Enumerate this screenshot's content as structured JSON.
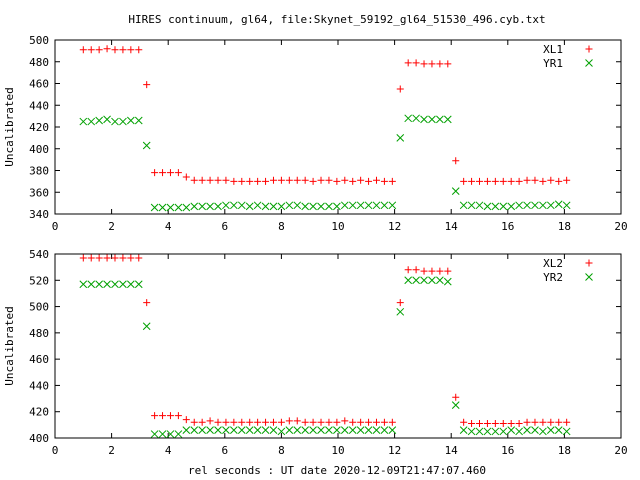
{
  "title": "HIRES continuum, gl64, file:Skynet_59192_gl64_51530_496.cyb.txt",
  "xlabel": "rel seconds : UT date 2020-12-09T21:47:07.460",
  "chart_data": [
    {
      "type": "scatter",
      "ylabel": "Uncalibrated",
      "xlim": [
        0,
        20
      ],
      "ylim": [
        340,
        500
      ],
      "xticks": [
        "0",
        "2",
        "4",
        "6",
        "8",
        "10",
        "12",
        "14",
        "16",
        "18",
        "20"
      ],
      "yticks": [
        "340",
        "360",
        "380",
        "400",
        "420",
        "440",
        "460",
        "480",
        "500"
      ],
      "legend_position": "top-right",
      "x": [
        1.0,
        1.28,
        1.56,
        1.84,
        2.12,
        2.4,
        2.68,
        2.96,
        3.24,
        3.52,
        3.8,
        4.08,
        4.36,
        4.64,
        4.92,
        5.2,
        5.48,
        5.76,
        6.04,
        6.32,
        6.6,
        6.88,
        7.16,
        7.44,
        7.72,
        8.0,
        8.28,
        8.56,
        8.84,
        9.12,
        9.4,
        9.68,
        9.96,
        10.24,
        10.52,
        10.8,
        11.08,
        11.36,
        11.64,
        11.92,
        12.2,
        12.48,
        12.76,
        13.04,
        13.32,
        13.6,
        13.88,
        14.16,
        14.44,
        14.72,
        15.0,
        15.28,
        15.56,
        15.84,
        16.12,
        16.4,
        16.68,
        16.96,
        17.24,
        17.52,
        17.8,
        18.08
      ],
      "series": [
        {
          "name": "XL1",
          "color": "#ff0000",
          "marker": "plus",
          "values": [
            491,
            491,
            491,
            492,
            491,
            491,
            491,
            491,
            459,
            378,
            378,
            378,
            378,
            374,
            371,
            371,
            371,
            371,
            371,
            370,
            370,
            370,
            370,
            370,
            371,
            371,
            371,
            371,
            371,
            370,
            371,
            371,
            370,
            371,
            370,
            371,
            370,
            371,
            370,
            370,
            455,
            479,
            479,
            478,
            478,
            478,
            478,
            389,
            370,
            370,
            370,
            370,
            370,
            370,
            370,
            370,
            371,
            371,
            370,
            371,
            370,
            371
          ]
        },
        {
          "name": "YR1",
          "color": "#00a000",
          "marker": "cross",
          "values": [
            425,
            425,
            426,
            427,
            425,
            425,
            426,
            426,
            403,
            346,
            346,
            346,
            346,
            346,
            347,
            347,
            347,
            347,
            348,
            348,
            348,
            347,
            348,
            347,
            347,
            347,
            348,
            348,
            347,
            347,
            347,
            347,
            347,
            348,
            348,
            348,
            348,
            348,
            348,
            348,
            410,
            428,
            428,
            427,
            427,
            427,
            427,
            361,
            348,
            348,
            348,
            347,
            347,
            347,
            347,
            348,
            348,
            348,
            348,
            348,
            349,
            348
          ]
        }
      ]
    },
    {
      "type": "scatter",
      "ylabel": "Uncalibrated",
      "xlim": [
        0,
        20
      ],
      "ylim": [
        400,
        540
      ],
      "xticks": [
        "0",
        "2",
        "4",
        "6",
        "8",
        "10",
        "12",
        "14",
        "16",
        "18",
        "20"
      ],
      "yticks": [
        "400",
        "420",
        "440",
        "460",
        "480",
        "500",
        "520",
        "540"
      ],
      "legend_position": "top-right",
      "x": [
        1.0,
        1.28,
        1.56,
        1.84,
        2.12,
        2.4,
        2.68,
        2.96,
        3.24,
        3.52,
        3.8,
        4.08,
        4.36,
        4.64,
        4.92,
        5.2,
        5.48,
        5.76,
        6.04,
        6.32,
        6.6,
        6.88,
        7.16,
        7.44,
        7.72,
        8.0,
        8.28,
        8.56,
        8.84,
        9.12,
        9.4,
        9.68,
        9.96,
        10.24,
        10.52,
        10.8,
        11.08,
        11.36,
        11.64,
        11.92,
        12.2,
        12.48,
        12.76,
        13.04,
        13.32,
        13.6,
        13.88,
        14.16,
        14.44,
        14.72,
        15.0,
        15.28,
        15.56,
        15.84,
        16.12,
        16.4,
        16.68,
        16.96,
        17.24,
        17.52,
        17.8,
        18.08
      ],
      "series": [
        {
          "name": "XL2",
          "color": "#ff0000",
          "marker": "plus",
          "values": [
            537,
            537,
            537,
            537,
            537,
            537,
            537,
            537,
            503,
            417,
            417,
            417,
            417,
            414,
            412,
            412,
            413,
            412,
            412,
            412,
            412,
            412,
            412,
            412,
            412,
            412,
            413,
            413,
            412,
            412,
            412,
            412,
            412,
            413,
            412,
            412,
            412,
            412,
            412,
            412,
            503,
            528,
            528,
            527,
            527,
            527,
            527,
            431,
            412,
            411,
            411,
            411,
            411,
            411,
            411,
            411,
            412,
            412,
            412,
            412,
            412,
            412
          ]
        },
        {
          "name": "YR2",
          "color": "#00a000",
          "marker": "cross",
          "values": [
            517,
            517,
            517,
            517,
            517,
            517,
            517,
            517,
            485,
            403,
            403,
            403,
            403,
            406,
            406,
            406,
            406,
            406,
            406,
            406,
            406,
            406,
            406,
            406,
            406,
            405,
            406,
            406,
            406,
            406,
            406,
            406,
            406,
            406,
            406,
            406,
            406,
            406,
            406,
            406,
            496,
            520,
            520,
            520,
            520,
            520,
            519,
            425,
            406,
            405,
            405,
            405,
            405,
            405,
            406,
            405,
            406,
            406,
            405,
            406,
            406,
            405
          ]
        }
      ]
    }
  ]
}
